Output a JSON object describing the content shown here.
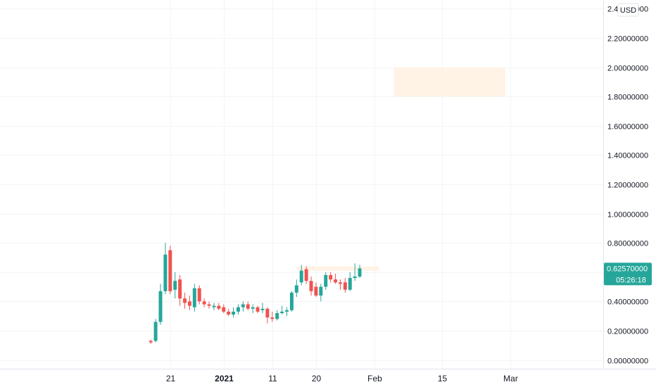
{
  "chart_data": {
    "type": "candlestick",
    "currency": "USD",
    "y_axis": {
      "ylim": [
        -0.06,
        2.46
      ],
      "ticks": [
        "0.00000000",
        "0.20000000",
        "0.40000000",
        "0.60000000",
        "0.80000000",
        "1.00000000",
        "1.20000000",
        "1.40000000",
        "1.60000000",
        "1.80000000",
        "2.00000000",
        "2.20000000",
        "2.40000000"
      ],
      "tick_values": [
        0,
        0.2,
        0.4,
        0.6,
        0.8,
        1.0,
        1.2,
        1.4,
        1.6,
        1.8,
        2.0,
        2.2,
        2.4
      ]
    },
    "x_axis": {
      "day_range": [
        -13,
        71
      ],
      "labels": [
        {
          "text": "21",
          "day": -11,
          "bold": false
        },
        {
          "text": "2021",
          "day": 0,
          "bold": true
        },
        {
          "text": "11",
          "day": 10,
          "bold": false
        },
        {
          "text": "20",
          "day": 19,
          "bold": false
        },
        {
          "text": "Feb",
          "day": 31,
          "bold": false
        },
        {
          "text": "15",
          "day": 45,
          "bold": false
        },
        {
          "text": "Mar",
          "day": 59,
          "bold": false
        }
      ]
    },
    "colors": {
      "up": "#26a69a",
      "down": "#ef5350",
      "zone_fill": "#fff3e6",
      "grid": "#f4f4f6",
      "axis_text": "#131722",
      "price_badge": "#26a69a"
    },
    "zones": [
      {
        "day_start": 35,
        "day_end": 58,
        "price_low": 1.8,
        "price_high": 2.0
      },
      {
        "day_start": 15,
        "day_end": 32,
        "price_low": 0.61,
        "price_high": 0.64
      }
    ],
    "candles": [
      {
        "day": -15,
        "open": 0.13,
        "high": 0.14,
        "low": 0.11,
        "close": 0.12
      },
      {
        "day": -14,
        "open": 0.13,
        "high": 0.28,
        "low": 0.12,
        "close": 0.26
      },
      {
        "day": -13,
        "open": 0.26,
        "high": 0.52,
        "low": 0.24,
        "close": 0.47
      },
      {
        "day": -12,
        "open": 0.47,
        "high": 0.8,
        "low": 0.45,
        "close": 0.72
      },
      {
        "day": -11,
        "open": 0.75,
        "high": 0.78,
        "low": 0.45,
        "close": 0.47
      },
      {
        "day": -10,
        "open": 0.48,
        "high": 0.6,
        "low": 0.42,
        "close": 0.54
      },
      {
        "day": -9,
        "open": 0.55,
        "high": 0.58,
        "low": 0.37,
        "close": 0.42
      },
      {
        "day": -8,
        "open": 0.42,
        "high": 0.46,
        "low": 0.35,
        "close": 0.39
      },
      {
        "day": -7,
        "open": 0.4,
        "high": 0.44,
        "low": 0.34,
        "close": 0.37
      },
      {
        "day": -6,
        "open": 0.36,
        "high": 0.52,
        "low": 0.33,
        "close": 0.49
      },
      {
        "day": -5,
        "open": 0.49,
        "high": 0.51,
        "low": 0.38,
        "close": 0.4
      },
      {
        "day": -4,
        "open": 0.4,
        "high": 0.42,
        "low": 0.36,
        "close": 0.38
      },
      {
        "day": -3,
        "open": 0.38,
        "high": 0.4,
        "low": 0.35,
        "close": 0.37
      },
      {
        "day": -2,
        "open": 0.36,
        "high": 0.39,
        "low": 0.34,
        "close": 0.37
      },
      {
        "day": -1,
        "open": 0.37,
        "high": 0.39,
        "low": 0.34,
        "close": 0.35
      },
      {
        "day": 0,
        "open": 0.36,
        "high": 0.38,
        "low": 0.32,
        "close": 0.33
      },
      {
        "day": 1,
        "open": 0.33,
        "high": 0.35,
        "low": 0.3,
        "close": 0.31
      },
      {
        "day": 2,
        "open": 0.31,
        "high": 0.36,
        "low": 0.29,
        "close": 0.33
      },
      {
        "day": 3,
        "open": 0.33,
        "high": 0.38,
        "low": 0.31,
        "close": 0.36
      },
      {
        "day": 4,
        "open": 0.36,
        "high": 0.4,
        "low": 0.33,
        "close": 0.38
      },
      {
        "day": 5,
        "open": 0.38,
        "high": 0.4,
        "low": 0.34,
        "close": 0.35
      },
      {
        "day": 6,
        "open": 0.35,
        "high": 0.38,
        "low": 0.32,
        "close": 0.36
      },
      {
        "day": 7,
        "open": 0.36,
        "high": 0.37,
        "low": 0.32,
        "close": 0.33
      },
      {
        "day": 8,
        "open": 0.34,
        "high": 0.39,
        "low": 0.32,
        "close": 0.35
      },
      {
        "day": 9,
        "open": 0.35,
        "high": 0.36,
        "low": 0.25,
        "close": 0.29
      },
      {
        "day": 10,
        "open": 0.29,
        "high": 0.33,
        "low": 0.26,
        "close": 0.28
      },
      {
        "day": 11,
        "open": 0.28,
        "high": 0.34,
        "low": 0.27,
        "close": 0.32
      },
      {
        "day": 12,
        "open": 0.32,
        "high": 0.37,
        "low": 0.31,
        "close": 0.33
      },
      {
        "day": 13,
        "open": 0.33,
        "high": 0.36,
        "low": 0.3,
        "close": 0.34
      },
      {
        "day": 14,
        "open": 0.34,
        "high": 0.47,
        "low": 0.33,
        "close": 0.46
      },
      {
        "day": 15,
        "open": 0.46,
        "high": 0.55,
        "low": 0.43,
        "close": 0.51
      },
      {
        "day": 16,
        "open": 0.53,
        "high": 0.65,
        "low": 0.51,
        "close": 0.61
      },
      {
        "day": 17,
        "open": 0.62,
        "high": 0.64,
        "low": 0.52,
        "close": 0.54
      },
      {
        "day": 18,
        "open": 0.54,
        "high": 0.57,
        "low": 0.44,
        "close": 0.47
      },
      {
        "day": 19,
        "open": 0.5,
        "high": 0.53,
        "low": 0.43,
        "close": 0.44
      },
      {
        "day": 20,
        "open": 0.44,
        "high": 0.52,
        "low": 0.4,
        "close": 0.5
      },
      {
        "day": 21,
        "open": 0.5,
        "high": 0.6,
        "low": 0.48,
        "close": 0.58
      },
      {
        "day": 22,
        "open": 0.58,
        "high": 0.6,
        "low": 0.53,
        "close": 0.55
      },
      {
        "day": 23,
        "open": 0.55,
        "high": 0.59,
        "low": 0.52,
        "close": 0.53
      },
      {
        "day": 24,
        "open": 0.53,
        "high": 0.55,
        "low": 0.48,
        "close": 0.52
      },
      {
        "day": 25,
        "open": 0.53,
        "high": 0.56,
        "low": 0.46,
        "close": 0.48
      },
      {
        "day": 26,
        "open": 0.48,
        "high": 0.6,
        "low": 0.47,
        "close": 0.56
      },
      {
        "day": 27,
        "open": 0.56,
        "high": 0.66,
        "low": 0.54,
        "close": 0.57
      },
      {
        "day": 28,
        "open": 0.57,
        "high": 0.65,
        "low": 0.56,
        "close": 0.6257
      }
    ],
    "last_price": {
      "value": 0.6257,
      "label": "0.62570000",
      "countdown": "05:26:18"
    }
  }
}
